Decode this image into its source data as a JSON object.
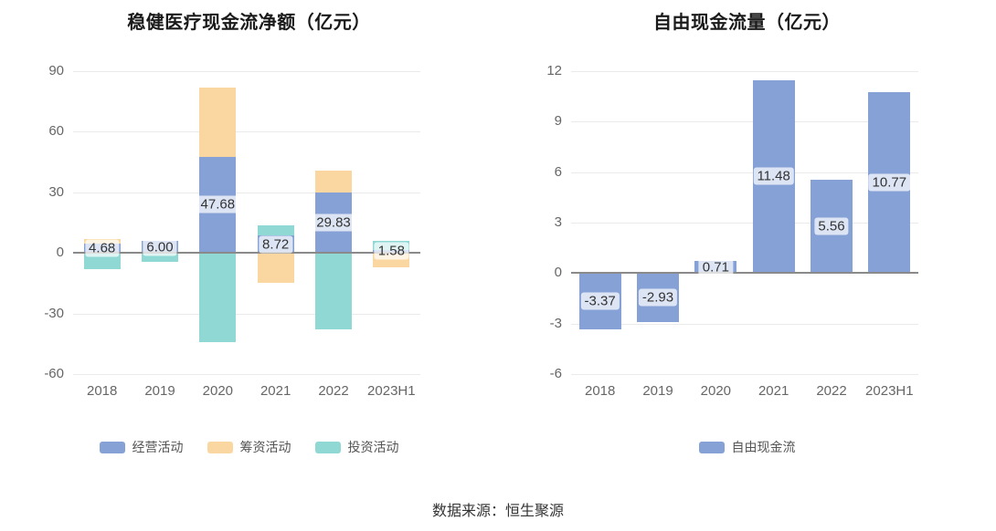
{
  "footer": {
    "source": "数据来源：恒生聚源"
  },
  "chart_data": [
    {
      "type": "bar",
      "stacked": true,
      "title": "稳健医疗现金流净额（亿元）",
      "categories": [
        "2018",
        "2019",
        "2020",
        "2021",
        "2022",
        "2023H1"
      ],
      "ylim": [
        -60,
        90
      ],
      "yticks": [
        90,
        60,
        30,
        0,
        -30,
        -60
      ],
      "grid": true,
      "legend_position": "bottom",
      "series": [
        {
          "key": "operating",
          "name": "经营活动",
          "color": "#86a1d6",
          "labeled": true,
          "values": [
            4.68,
            6.0,
            47.68,
            8.72,
            29.83,
            1.58
          ]
        },
        {
          "key": "financing",
          "name": "筹资活动",
          "color": "#fad7a0",
          "values": [
            2.3,
            0,
            34.0,
            -15.0,
            11.0,
            -7.0
          ]
        },
        {
          "key": "investing",
          "name": "投资活动",
          "color": "#8fd8d4",
          "values": [
            -8.0,
            -4.5,
            -44.0,
            5.0,
            -38.0,
            4.5
          ]
        }
      ],
      "data_labels": [
        "4.68",
        "6.00",
        "47.68",
        "8.72",
        "29.83",
        "1.58"
      ]
    },
    {
      "type": "bar",
      "stacked": false,
      "title": "自由现金流量（亿元）",
      "categories": [
        "2018",
        "2019",
        "2020",
        "2021",
        "2022",
        "2023H1"
      ],
      "ylim": [
        -6,
        12
      ],
      "yticks": [
        12,
        9,
        6,
        3,
        0,
        -3,
        -6
      ],
      "grid": true,
      "legend_position": "bottom",
      "series": [
        {
          "key": "free-cashflow",
          "name": "自由现金流",
          "color": "#86a1d6",
          "labeled": true,
          "values": [
            -3.37,
            -2.93,
            0.71,
            11.48,
            5.56,
            10.77
          ]
        }
      ],
      "data_labels": [
        "-3.37",
        "-2.93",
        "0.71",
        "11.48",
        "5.56",
        "10.77"
      ]
    }
  ]
}
